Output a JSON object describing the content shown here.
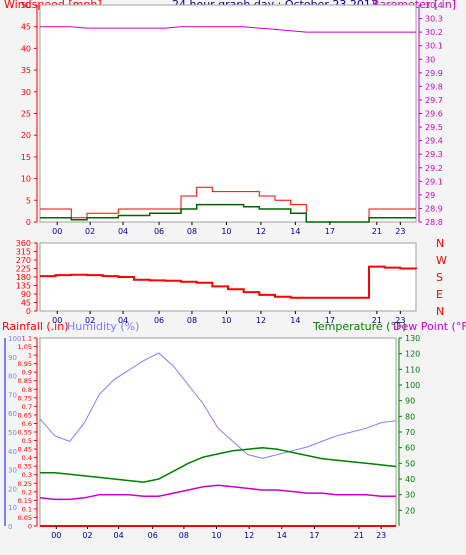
{
  "header": {
    "windspeed_label": "Windspeed [mph]",
    "title": "24 hour graph day : October 23 2013",
    "barometer_label": "Barometer [ in]"
  },
  "lower_header": {
    "rainfall_label": "Rainfall (.in)",
    "humidity_label": "Humidity (%)",
    "temperature_label": "Temperature (°F)",
    "dewpoint_label": "Dew Point (°F)"
  },
  "colors": {
    "wind": "#ff0000",
    "gust": "#ff0000",
    "windavg": "#006400",
    "windblue": "#0000cc",
    "barometer": "#cc00cc",
    "direction": "#ff0000",
    "rain": "#ff0000",
    "humidity": "#7f7fff",
    "temperature": "#008000",
    "dewpoint": "#cc00cc",
    "title": "#000099",
    "frame": "#a0a0a0"
  },
  "x_ticks": [
    "00",
    "02",
    "04",
    "06",
    "08",
    "10",
    "12",
    "14",
    "17",
    "21",
    "21",
    "23"
  ],
  "chart_data": [
    {
      "type": "line",
      "name": "wind-panel",
      "title": "24 hour graph day : October 23 2013",
      "left_axis": {
        "label": "Windspeed [mph]",
        "range": [
          0,
          50
        ],
        "ticks": [
          0,
          5,
          10,
          15,
          20,
          25,
          30,
          35,
          40,
          45,
          50
        ]
      },
      "right_axis": {
        "label": "Barometer [ in]",
        "range": [
          28.8,
          30.4
        ],
        "ticks": [
          "28.8",
          "28.9",
          "29",
          "29.1",
          "29.2",
          "29.3",
          "29.4",
          "29.5",
          "29.6",
          "29.7",
          "29.8",
          "29.9",
          "30",
          "30.1",
          "30.2",
          "30.3",
          "30.4"
        ]
      },
      "x_hours": [
        0,
        1,
        2,
        3,
        4,
        5,
        6,
        7,
        8,
        9,
        10,
        11,
        12,
        13,
        14,
        15,
        16,
        17,
        18,
        19,
        20,
        21,
        22,
        23,
        24
      ],
      "barometer": [
        30.24,
        30.24,
        30.24,
        30.23,
        30.23,
        30.23,
        30.23,
        30.23,
        30.23,
        30.24,
        30.24,
        30.24,
        30.24,
        30.24,
        30.23,
        30.22,
        30.21,
        30.2,
        30.2,
        30.2,
        30.2,
        30.2,
        30.2,
        30.2,
        30.2
      ],
      "gust": [
        3,
        3,
        1,
        2,
        2,
        3,
        3,
        3,
        3,
        6,
        8,
        7,
        7,
        7,
        6,
        5,
        4,
        0,
        0,
        0,
        0,
        3,
        3,
        3,
        3
      ],
      "avg": [
        1,
        1,
        0.5,
        1,
        1,
        1.5,
        1.5,
        2,
        2,
        3,
        4,
        4,
        4,
        3.5,
        3,
        3,
        2,
        0,
        0,
        0,
        0,
        1,
        1,
        1,
        1
      ]
    },
    {
      "type": "line",
      "name": "direction-panel",
      "left_axis": {
        "range": [
          0,
          360
        ],
        "ticks": [
          0,
          45,
          90,
          135,
          180,
          225,
          270,
          315,
          360
        ]
      },
      "right_axis": {
        "ticks": [
          "N",
          "E",
          "S",
          "W",
          "N"
        ]
      },
      "x_hours": [
        0,
        1,
        2,
        3,
        4,
        5,
        6,
        7,
        8,
        9,
        10,
        11,
        12,
        13,
        14,
        15,
        16,
        17,
        18,
        19,
        20,
        21,
        22,
        23,
        24
      ],
      "direction": [
        185,
        190,
        192,
        190,
        185,
        180,
        165,
        162,
        160,
        155,
        150,
        130,
        115,
        100,
        85,
        75,
        70,
        70,
        70,
        70,
        70,
        235,
        230,
        225,
        222
      ]
    },
    {
      "type": "line",
      "name": "climate-panel",
      "humidity_axis": {
        "label": "Humidity (%)",
        "range": [
          0,
          100
        ],
        "ticks": [
          0,
          10,
          20,
          30,
          40,
          50,
          60,
          70,
          80,
          90,
          100
        ]
      },
      "rain_axis": {
        "label": "Rainfall (.in)",
        "range": [
          0,
          1.1
        ],
        "ticks": [
          "0",
          "0.05",
          "0.1",
          "0.15",
          "0.2",
          "0.25",
          "0.3",
          "0.35",
          "0.4",
          "0.45",
          "0.5",
          "0.55",
          "0.6",
          "0.65",
          "0.7",
          "0.75",
          "0.8",
          "0.85",
          "0.9",
          "0.95",
          "1",
          "1.05",
          "1.1"
        ]
      },
      "temp_axis": {
        "label": "Temperature (°F)",
        "range": [
          10,
          130
        ],
        "ticks": [
          20,
          30,
          40,
          50,
          60,
          70,
          80,
          90,
          100,
          110,
          120,
          130
        ]
      },
      "x_hours": [
        0,
        1,
        2,
        3,
        4,
        5,
        6,
        7,
        8,
        9,
        10,
        11,
        12,
        13,
        14,
        15,
        16,
        17,
        18,
        19,
        20,
        21,
        22,
        23,
        24
      ],
      "humidity": [
        57,
        48,
        45,
        55,
        70,
        78,
        83,
        88,
        92,
        85,
        75,
        65,
        52,
        45,
        38,
        36,
        38,
        40,
        42,
        45,
        48,
        50,
        52,
        55,
        56
      ],
      "temperature": [
        44,
        44,
        43,
        42,
        41,
        40,
        39,
        38,
        40,
        45,
        50,
        54,
        56,
        58,
        59,
        60,
        59,
        57,
        55,
        53,
        52,
        51,
        50,
        49,
        48
      ],
      "dewpoint": [
        28,
        27,
        27,
        28,
        30,
        30,
        30,
        29,
        29,
        31,
        33,
        35,
        36,
        35,
        34,
        33,
        33,
        32,
        31,
        31,
        30,
        30,
        30,
        29,
        29
      ],
      "rain": [
        0,
        0,
        0,
        0,
        0,
        0,
        0,
        0,
        0,
        0,
        0,
        0,
        0,
        0,
        0,
        0,
        0,
        0,
        0,
        0,
        0,
        0,
        0,
        0,
        0
      ]
    }
  ]
}
